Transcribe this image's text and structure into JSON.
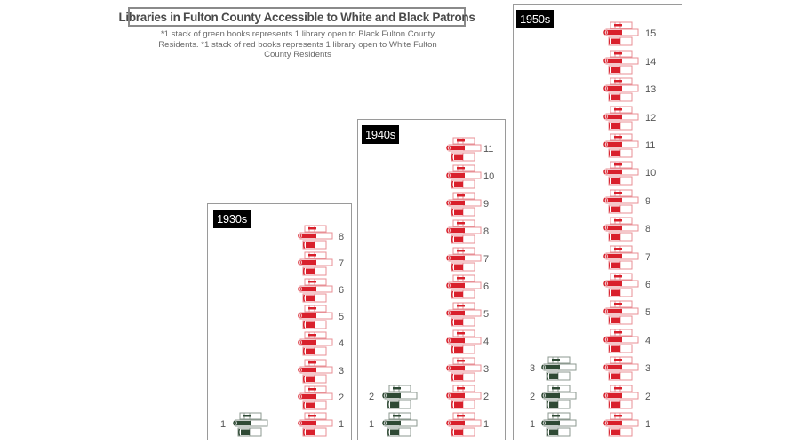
{
  "title": "Libraries in Fulton County Accessible to White and Black Patrons",
  "subtitle": "*1 stack of green books represents 1 library open to Black Fulton County Residents. *1 stack of red books represents 1 library open to White Fulton County Residents",
  "colors": {
    "green": "#2f4a35",
    "red": "#d9202c",
    "panel_border": "#9a9a9a",
    "label_bg": "#000000",
    "label_text": "#ffffff"
  },
  "legend": {
    "green_stack": "1 library open to Black Fulton County Residents",
    "red_stack": "1 library open to White Fulton County Residents"
  },
  "panels": [
    {
      "label": "1930s",
      "black_libraries": 1,
      "white_libraries": 8
    },
    {
      "label": "1940s",
      "black_libraries": 2,
      "white_libraries": 11
    },
    {
      "label": "1950s",
      "black_libraries": 3,
      "white_libraries": 15
    }
  ],
  "chart_data": {
    "type": "bar",
    "title": "Libraries in Fulton County Accessible to White and Black Patrons",
    "subtitle": "*1 stack of green books represents 1 library open to Black Fulton County Residents. *1 stack of red books represents 1 library open to White Fulton County Residents",
    "categories": [
      "1930s",
      "1940s",
      "1950s"
    ],
    "series": [
      {
        "name": "Libraries open to Black Fulton County Residents",
        "color": "green",
        "values": [
          1,
          2,
          3
        ]
      },
      {
        "name": "Libraries open to White Fulton County Residents",
        "color": "red",
        "values": [
          8,
          11,
          15
        ]
      }
    ],
    "xlabel": "",
    "ylabel": "",
    "pictograph_unit": "1 stack of books = 1 library",
    "grid": false,
    "legend_position": "subtitle-text"
  }
}
